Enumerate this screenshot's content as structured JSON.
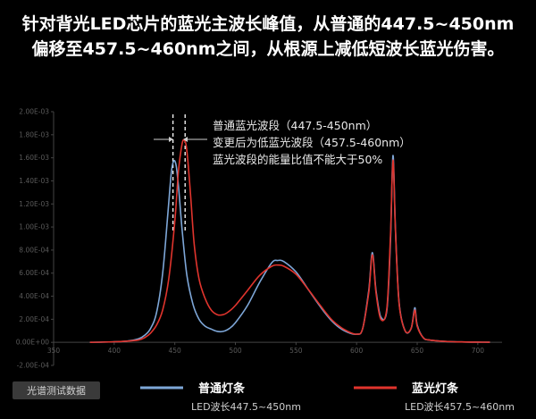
{
  "headline": {
    "line1": "针对背光LED芯片的蓝光主波长峰值，从普通的447.5~450nm",
    "line2": "偏移至457.5~460nm之间，从根源上减低短波长蓝光伤害。"
  },
  "annotations": [
    "普通蓝光波段（447.5-450nm）",
    "变更后为低蓝光波段（457.5-460nm）",
    "蓝光波段的能量比值不能大于50%"
  ],
  "badge": {
    "label": "光谱测试数据"
  },
  "legend": [
    {
      "name": "普通灯条",
      "color": "#7ea7d8",
      "sublabel": "LED波长447.5~450nm"
    },
    {
      "name": "蓝光灯条",
      "color": "#e0342d",
      "sublabel": "LED波长457.5~460nm"
    }
  ],
  "chart_data": {
    "type": "line",
    "title": "",
    "xlabel": "",
    "ylabel": "",
    "xlim": [
      350,
      720
    ],
    "ylim": [
      -0.0002,
      0.002
    ],
    "x_ticks": [
      "350",
      "400",
      "450",
      "500",
      "550",
      "600",
      "650",
      "700"
    ],
    "x_tick_values": [
      350,
      400,
      450,
      500,
      550,
      600,
      650,
      700
    ],
    "y_ticks": [
      "-2.00E-04",
      "0.00E+00",
      "2.00E-04",
      "4.00E-04",
      "6.00E-04",
      "8.00E-04",
      "1.00E-03",
      "1.20E-03",
      "1.40E-03",
      "1.60E-03",
      "1.80E-03",
      "2.00E-03"
    ],
    "y_tick_values": [
      -0.0002,
      0,
      0.0002,
      0.0004,
      0.0006,
      0.0008,
      0.001,
      0.0012,
      0.0014,
      0.0016,
      0.0018,
      0.002
    ],
    "grid": false,
    "reference_lines_x": [
      448.5,
      458.5
    ],
    "series": [
      {
        "name": "普通灯条",
        "color": "#7ea7d8",
        "x": [
          380,
          400,
          410,
          420,
          425,
          430,
          435,
          440,
          444,
          447,
          449,
          451,
          453,
          456,
          460,
          465,
          470,
          475,
          480,
          485,
          490,
          495,
          500,
          510,
          520,
          530,
          535,
          540,
          550,
          560,
          570,
          580,
          590,
          600,
          605,
          610,
          613,
          616,
          620,
          625,
          628,
          630,
          632,
          635,
          640,
          645,
          648,
          650,
          655,
          660,
          670,
          680,
          690,
          700,
          710
        ],
        "y": [
          0,
          5e-06,
          1e-05,
          3e-05,
          6e-05,
          0.00012,
          0.00026,
          0.0006,
          0.00108,
          0.00146,
          0.00157,
          0.00154,
          0.00136,
          0.00098,
          0.00058,
          0.00033,
          0.0002,
          0.00014,
          0.000115,
          9.5e-05,
          9.5e-05,
          0.00012,
          0.00017,
          0.00032,
          0.00052,
          0.00069,
          0.00071,
          0.0007,
          0.00061,
          0.00046,
          0.00031,
          0.00018,
          0.0001,
          7e-05,
          0.00012,
          0.00045,
          0.00078,
          0.00045,
          0.00022,
          0.00028,
          0.0009,
          0.00162,
          0.001,
          0.00035,
          0.0001,
          0.00012,
          0.0003,
          0.00015,
          4e-05,
          2e-05,
          1e-05,
          5e-06,
          3e-06,
          2e-06,
          1e-06
        ]
      },
      {
        "name": "蓝光灯条",
        "color": "#e0342d",
        "x": [
          380,
          400,
          410,
          420,
          425,
          430,
          435,
          440,
          445,
          450,
          453,
          456,
          458,
          460,
          463,
          466,
          470,
          475,
          480,
          485,
          490,
          495,
          500,
          510,
          520,
          530,
          535,
          540,
          550,
          560,
          570,
          580,
          590,
          600,
          605,
          610,
          613,
          616,
          620,
          625,
          628,
          630,
          632,
          635,
          640,
          645,
          648,
          650,
          655,
          660,
          670,
          680,
          690,
          700,
          710
        ],
        "y": [
          0,
          5e-06,
          1e-05,
          2e-05,
          4e-05,
          8e-05,
          0.00015,
          0.00028,
          0.00055,
          0.00105,
          0.00148,
          0.00172,
          0.00175,
          0.00166,
          0.00128,
          0.00085,
          0.00055,
          0.00038,
          0.00028,
          0.00024,
          0.00024,
          0.00027,
          0.00032,
          0.00045,
          0.00058,
          0.00066,
          0.00067,
          0.00066,
          0.00059,
          0.00046,
          0.00032,
          0.00019,
          0.00011,
          7e-05,
          0.00012,
          0.00043,
          0.00076,
          0.00043,
          0.0002,
          0.0003,
          0.00095,
          0.00158,
          0.00098,
          0.00034,
          0.0001,
          0.00012,
          0.00028,
          0.00014,
          4e-05,
          2e-05,
          1e-05,
          5e-06,
          3e-06,
          2e-06,
          1e-06
        ]
      }
    ]
  }
}
